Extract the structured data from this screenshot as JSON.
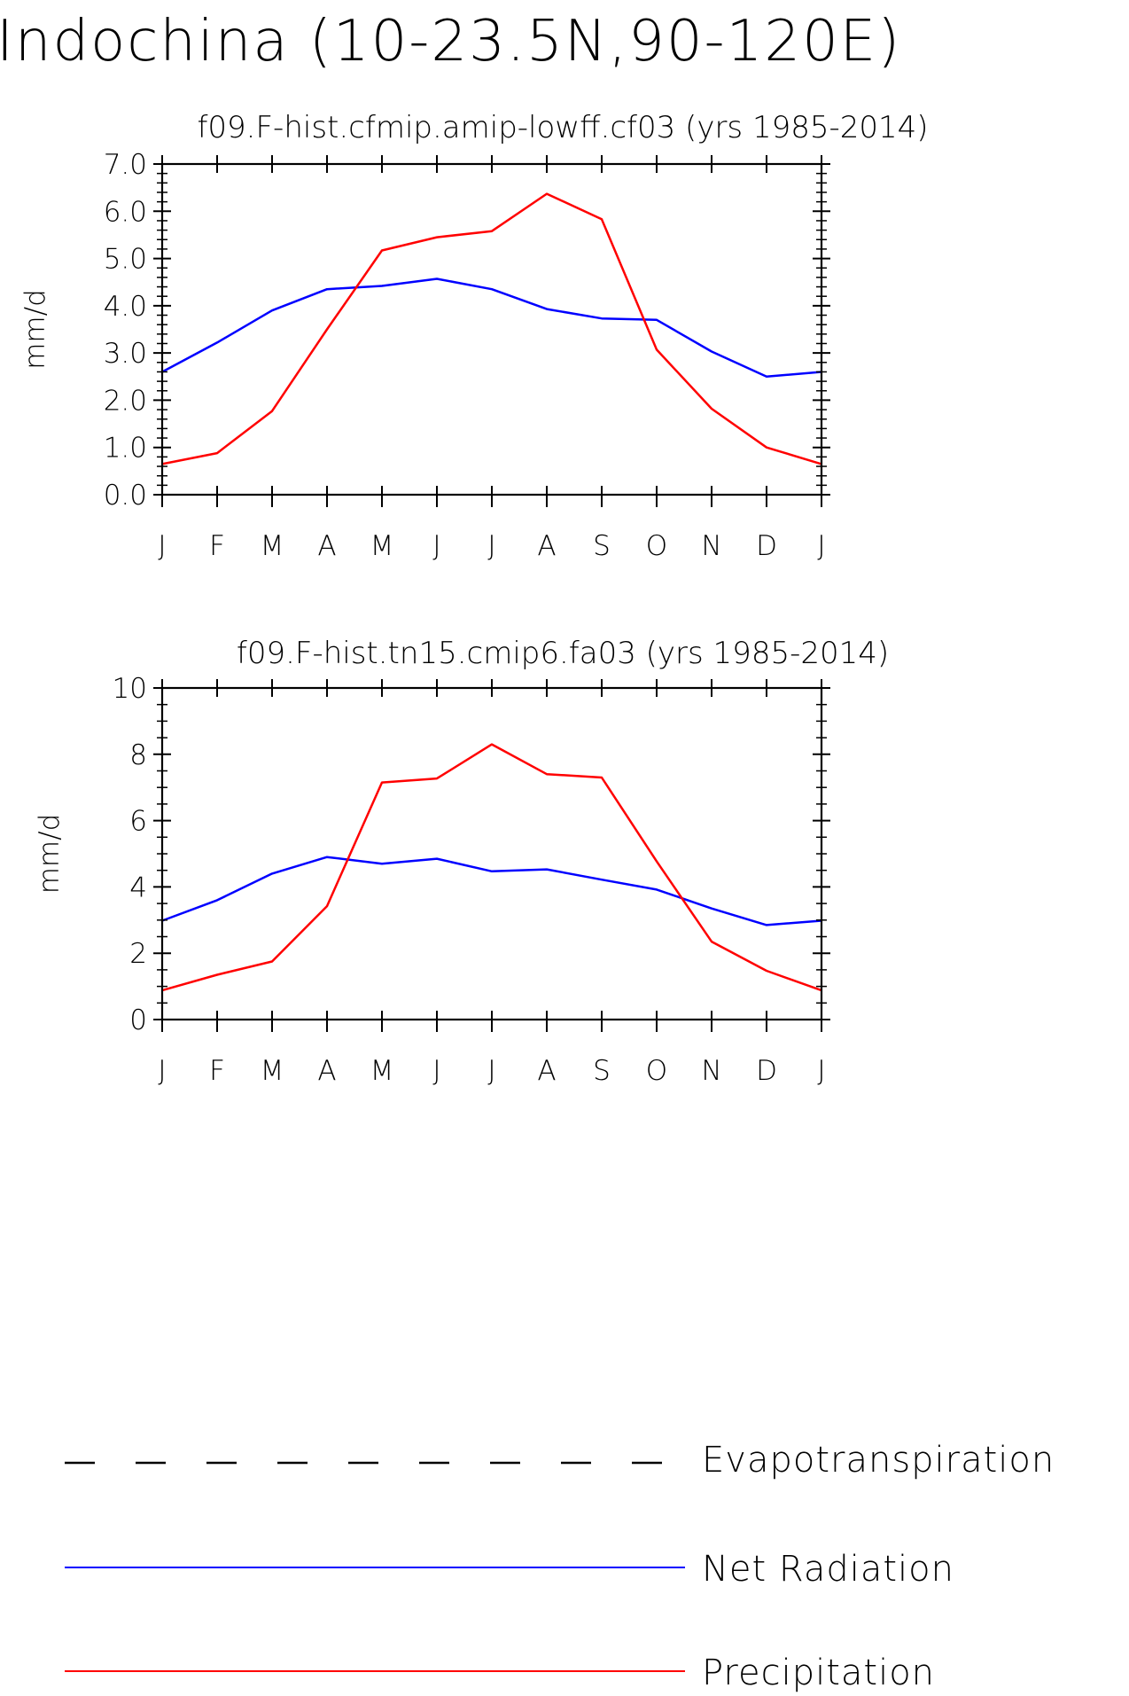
{
  "figure": {
    "title": "Indochina (10-23.5N,90-120E)"
  },
  "legend": {
    "items": [
      {
        "label": "Evapotranspiration",
        "color": "#000000",
        "style": "dashed"
      },
      {
        "label": "Net Radiation",
        "color": "#0000ff",
        "style": "solid"
      },
      {
        "label": "Precipitation",
        "color": "#ff0000",
        "style": "solid"
      }
    ]
  },
  "chart_data": [
    {
      "type": "line",
      "title": "f09.F-hist.cfmip.amip-lowff.cf03 (yrs 1985-2014)",
      "xlabel": "",
      "ylabel": "mm/d",
      "categories": [
        "J",
        "F",
        "M",
        "A",
        "M",
        "J",
        "J",
        "A",
        "S",
        "O",
        "N",
        "D",
        "J"
      ],
      "ylim": [
        0,
        7
      ],
      "yticks": [
        "0.0",
        "1.0",
        "2.0",
        "3.0",
        "4.0",
        "5.0",
        "6.0",
        "7.0"
      ],
      "grid": false,
      "series": [
        {
          "name": "Net Radiation",
          "color": "#0000ff",
          "values": [
            2.6,
            3.22,
            3.9,
            4.35,
            4.42,
            4.57,
            4.35,
            3.93,
            3.73,
            3.7,
            3.03,
            2.5,
            2.6
          ]
        },
        {
          "name": "Precipitation",
          "color": "#ff0000",
          "values": [
            0.65,
            0.88,
            1.77,
            3.5,
            5.17,
            5.45,
            5.58,
            6.37,
            5.83,
            3.07,
            1.82,
            1.0,
            0.65
          ]
        }
      ]
    },
    {
      "type": "line",
      "title": "f09.F-hist.tn15.cmip6.fa03 (yrs 1985-2014)",
      "xlabel": "",
      "ylabel": "mm/d",
      "categories": [
        "J",
        "F",
        "M",
        "A",
        "M",
        "J",
        "J",
        "A",
        "S",
        "O",
        "N",
        "D",
        "J"
      ],
      "ylim": [
        0,
        10
      ],
      "yticks": [
        "0",
        "2",
        "4",
        "6",
        "8",
        "10"
      ],
      "grid": false,
      "series": [
        {
          "name": "Net Radiation",
          "color": "#0000ff",
          "values": [
            2.98,
            3.6,
            4.4,
            4.9,
            4.7,
            4.85,
            4.47,
            4.53,
            4.22,
            3.92,
            3.35,
            2.85,
            2.98
          ]
        },
        {
          "name": "Precipitation",
          "color": "#ff0000",
          "values": [
            0.88,
            1.35,
            1.75,
            3.42,
            7.15,
            7.27,
            8.3,
            7.4,
            7.3,
            4.77,
            2.35,
            1.47,
            0.88
          ]
        }
      ]
    }
  ]
}
